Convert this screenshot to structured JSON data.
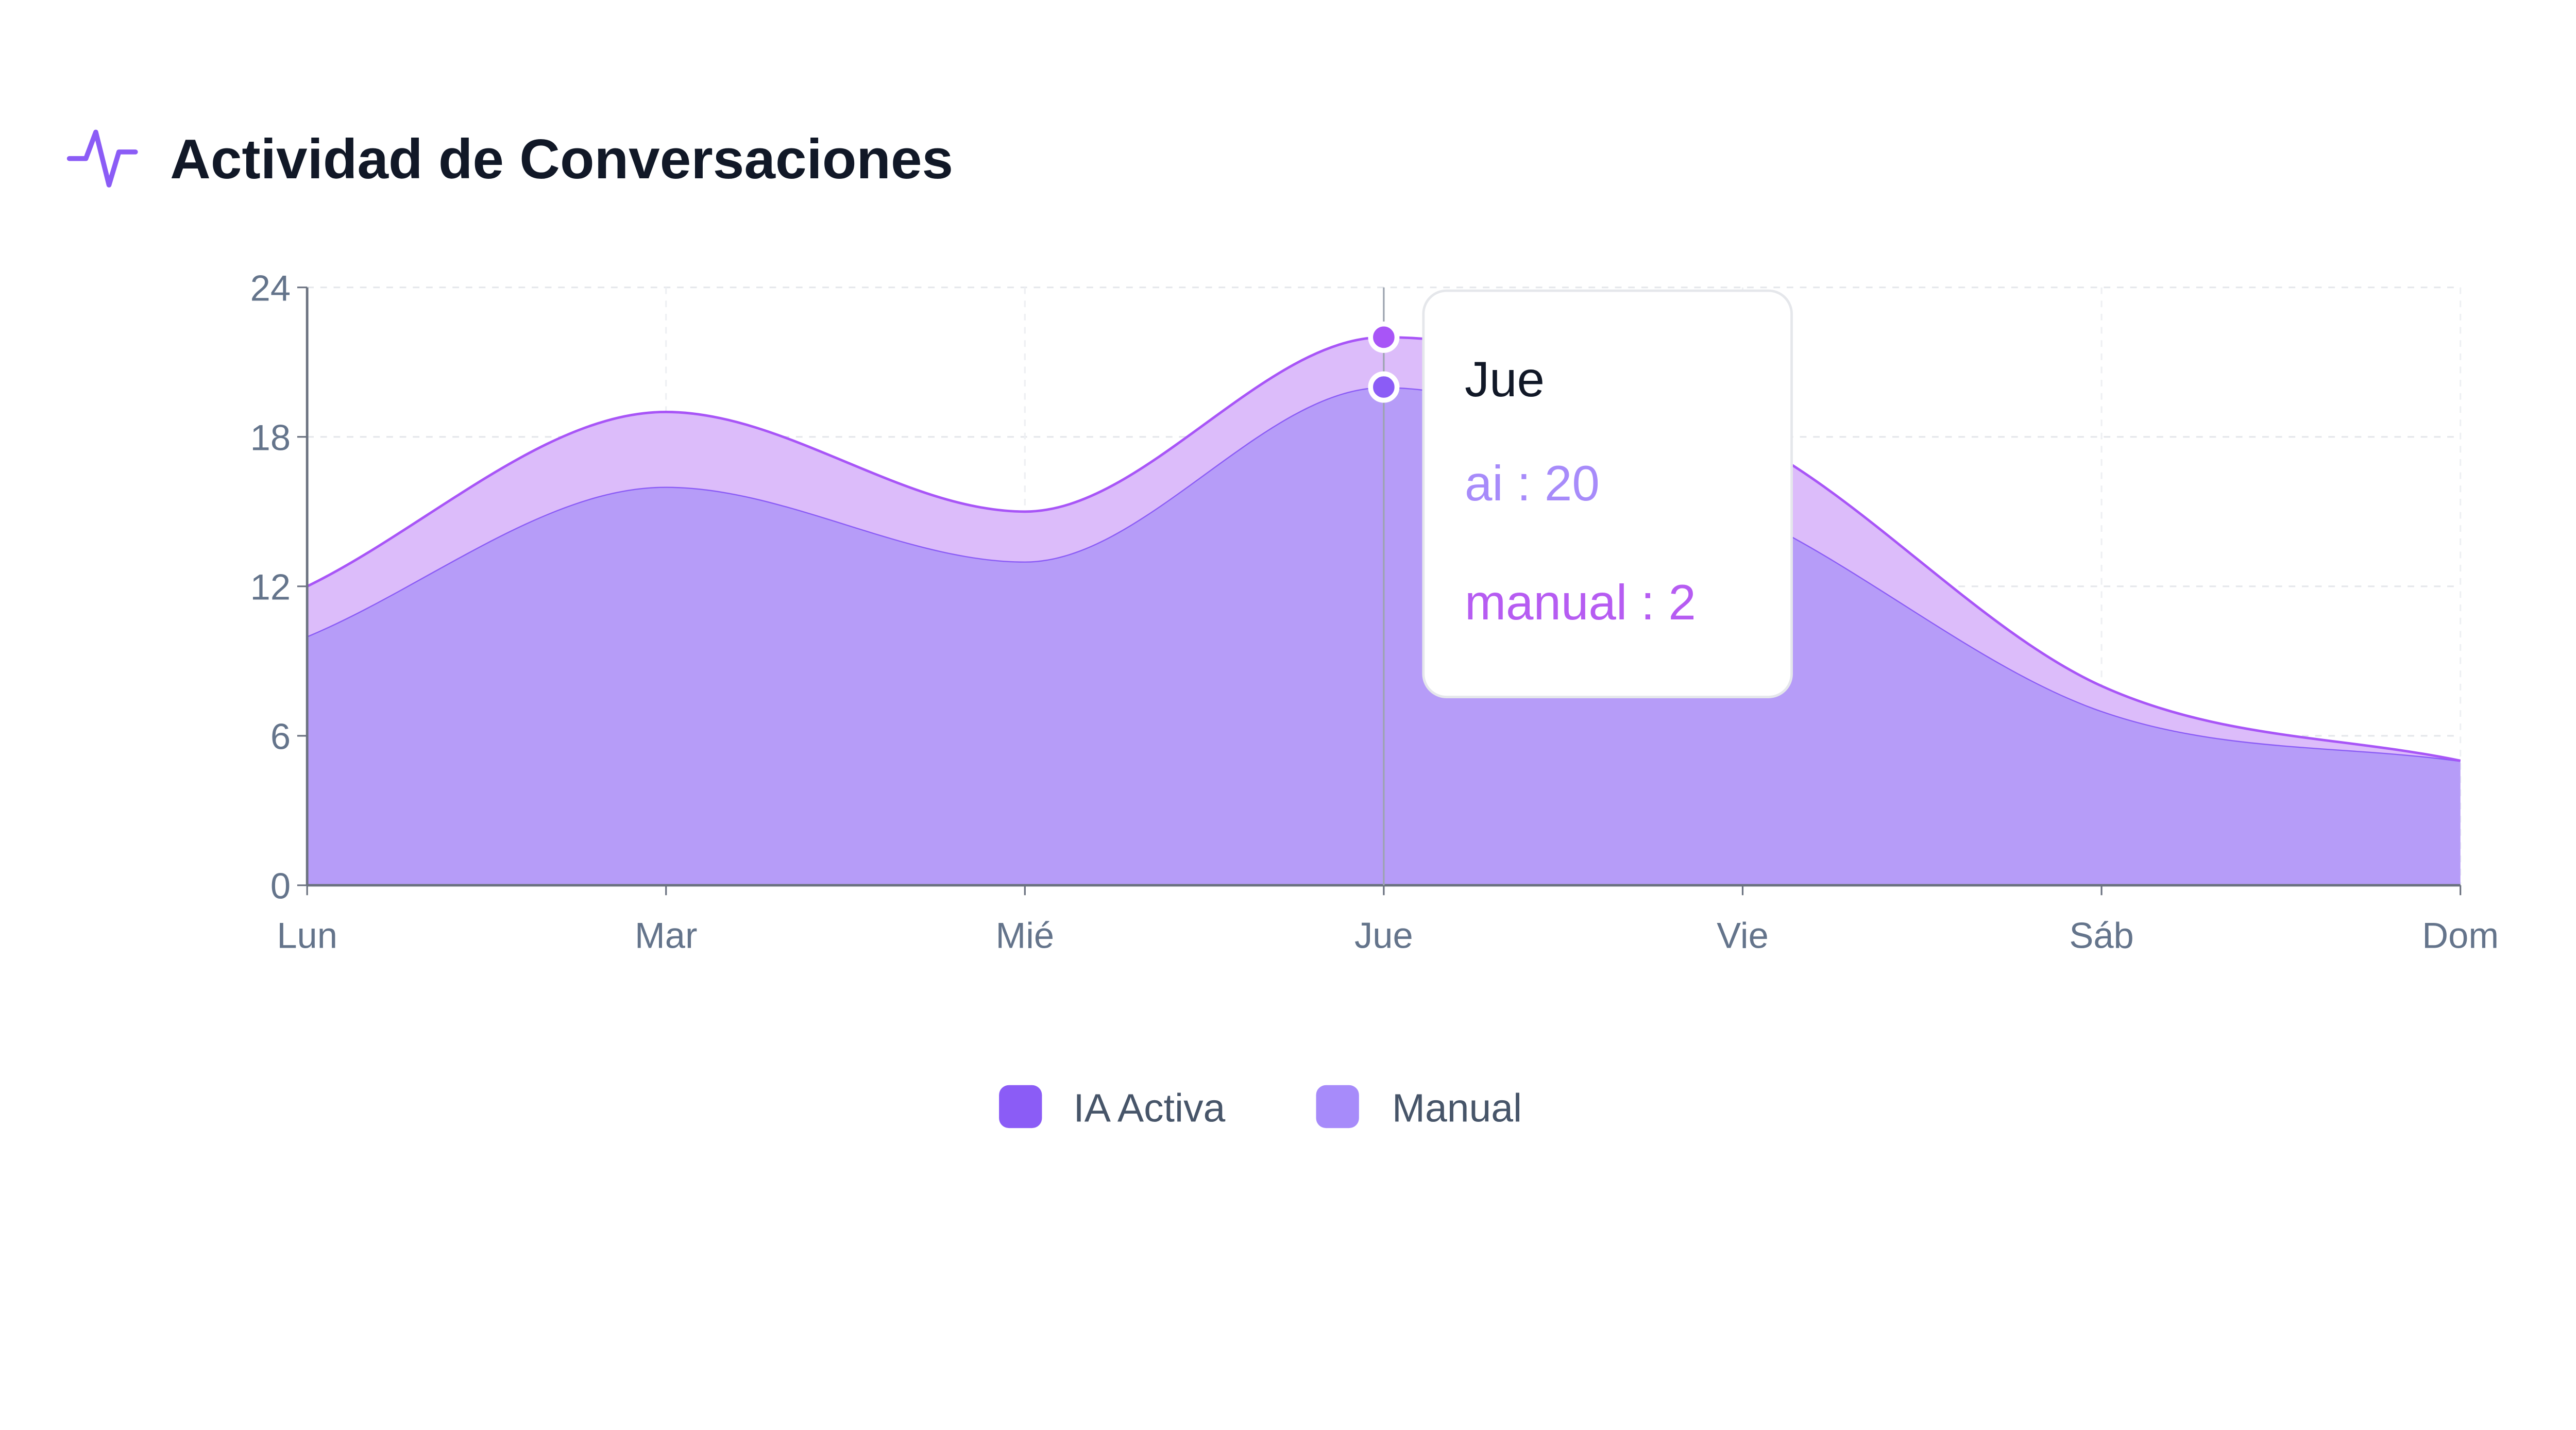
{
  "header": {
    "title": "Actividad de Conversaciones",
    "icon": "activity-icon"
  },
  "chart_data": {
    "type": "area",
    "stacked": true,
    "title": "Actividad de Conversaciones",
    "xlabel": "",
    "ylabel": "",
    "categories": [
      "Lun",
      "Mar",
      "Mié",
      "Jue",
      "Vie",
      "Sáb",
      "Dom"
    ],
    "ylim": [
      0,
      24
    ],
    "yticks": [
      "0",
      "6",
      "12",
      "18",
      "24"
    ],
    "grid": true,
    "legend": "bottom",
    "series": [
      {
        "name": "IA Activa",
        "key": "ai",
        "values": [
          10,
          16,
          13,
          20,
          15,
          7,
          5
        ],
        "color": "#8b5cf6",
        "fill": "#b69cf8"
      },
      {
        "name": "Manual",
        "key": "manual",
        "values": [
          2,
          3,
          2,
          2,
          3,
          1,
          0
        ],
        "color": "#a78bfa",
        "fill": "#dcbcfa"
      }
    ],
    "tooltip": {
      "category": "Jue",
      "lines": [
        {
          "text": "ai : 20",
          "color": "#a78bfa"
        },
        {
          "text": "manual : 2",
          "color": "#b65cf2"
        }
      ]
    }
  }
}
